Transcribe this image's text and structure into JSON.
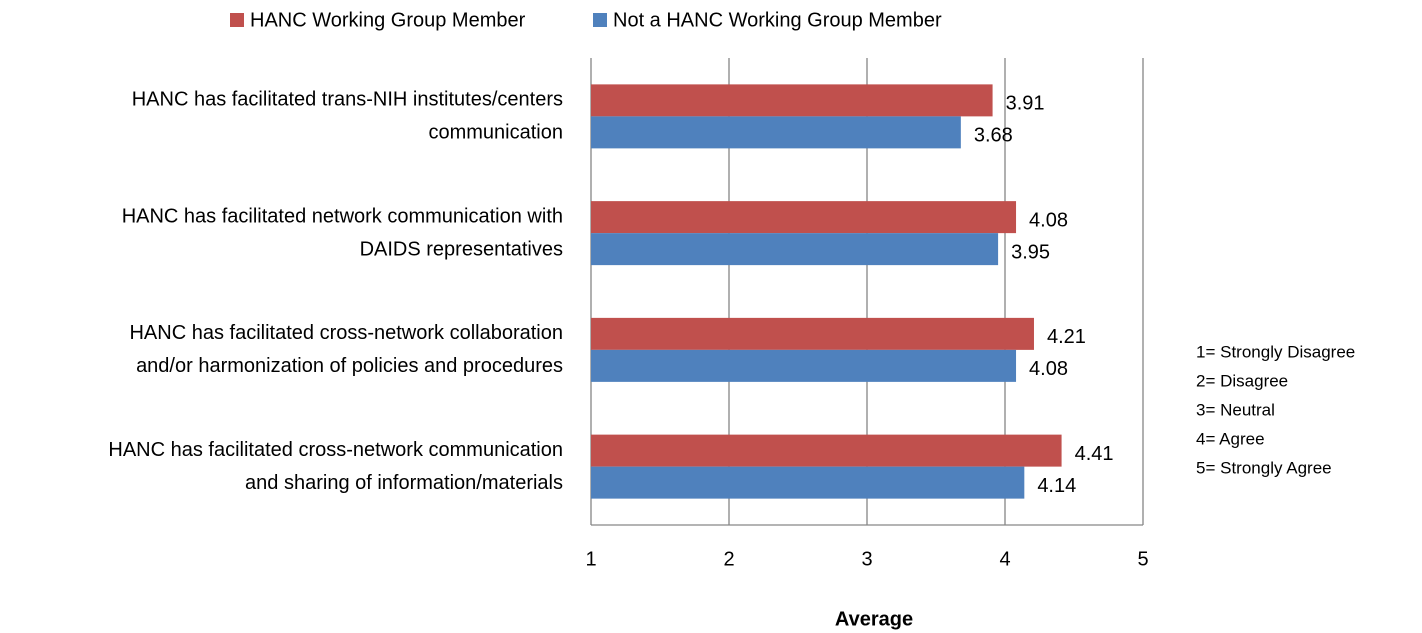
{
  "chart_data": {
    "type": "hbar",
    "categories": [
      [
        "HANC has facilitated trans-NIH institutes/centers",
        "communication"
      ],
      [
        "HANC has facilitated network communication with",
        "DAIDS representatives"
      ],
      [
        "HANC has facilitated cross-network collaboration",
        "and/or harmonization of policies and procedures"
      ],
      [
        "HANC has facilitated cross-network communication",
        "and sharing of information/materials"
      ]
    ],
    "series": [
      {
        "name": "HANC Working Group Member",
        "color": "#c0504d",
        "values": [
          3.91,
          4.08,
          4.21,
          4.41
        ]
      },
      {
        "name": "Not a HANC Working Group Member",
        "color": "#4f81bd",
        "values": [
          3.68,
          3.95,
          4.08,
          4.14
        ]
      }
    ],
    "xlim": [
      1,
      5
    ],
    "xticks": [
      1,
      2,
      3,
      4,
      5
    ],
    "grid": true,
    "x_label": "Average",
    "legend": "top",
    "annotations": [
      "1= Strongly Disagree",
      "2= Disagree",
      "3= Neutral",
      "4= Agree",
      "5= Strongly Agree"
    ]
  }
}
